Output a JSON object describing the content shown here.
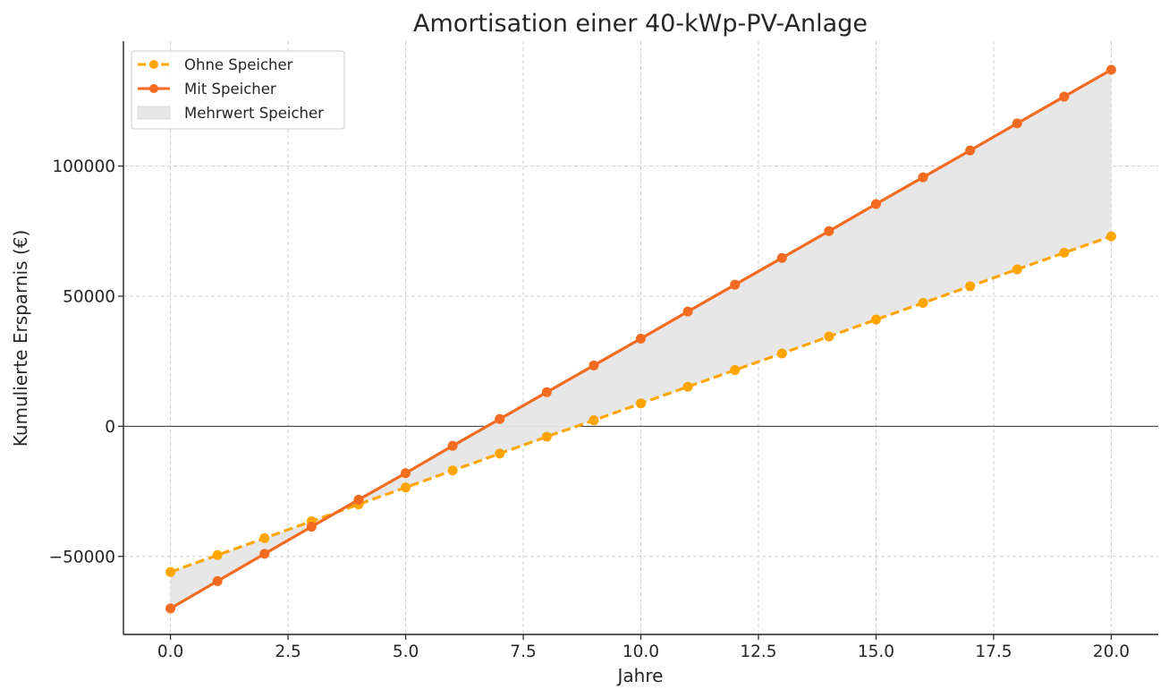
{
  "chart_data": {
    "type": "line",
    "title": "Amortisation einer 40-kWp-PV-Anlage",
    "xlabel": "Jahre",
    "ylabel": "Kumulierte Ersparnis (€)",
    "x": [
      0,
      1,
      2,
      3,
      4,
      5,
      6,
      7,
      8,
      9,
      10,
      11,
      12,
      13,
      14,
      15,
      16,
      17,
      18,
      19,
      20
    ],
    "xlim": [
      -1,
      21
    ],
    "ylim": [
      -80000,
      148000
    ],
    "xticks": [
      0,
      2.5,
      5,
      7.5,
      10,
      12.5,
      15,
      17.5,
      20
    ],
    "xtick_labels": [
      "0.0",
      "2.5",
      "5.0",
      "7.5",
      "10.0",
      "12.5",
      "15.0",
      "17.5",
      "20.0"
    ],
    "yticks": [
      -50000,
      0,
      50000,
      100000
    ],
    "ytick_labels": [
      "−50000",
      "0",
      "50000",
      "100000"
    ],
    "grid": true,
    "zero_line": true,
    "legend_position": "top-left",
    "series": [
      {
        "name": "Ohne Speicher",
        "style": "dashed",
        "color": "#FFA500",
        "values": [
          -56000,
          -49500,
          -43000,
          -36500,
          -30000,
          -23500,
          -17000,
          -10500,
          -4000,
          2300,
          8800,
          15200,
          21600,
          28000,
          34500,
          41000,
          47400,
          53800,
          60300,
          66700,
          73000
        ]
      },
      {
        "name": "Mit Speicher",
        "style": "solid",
        "color": "#F26B21",
        "values": [
          -70000,
          -59500,
          -49000,
          -38600,
          -28200,
          -18000,
          -7500,
          2800,
          13100,
          23400,
          33700,
          44100,
          54400,
          64700,
          75000,
          85400,
          95700,
          106000,
          116400,
          126700,
          137000
        ]
      }
    ],
    "fill_between": {
      "name": "Mehrwert Speicher",
      "color": "#e6e6e6"
    }
  }
}
